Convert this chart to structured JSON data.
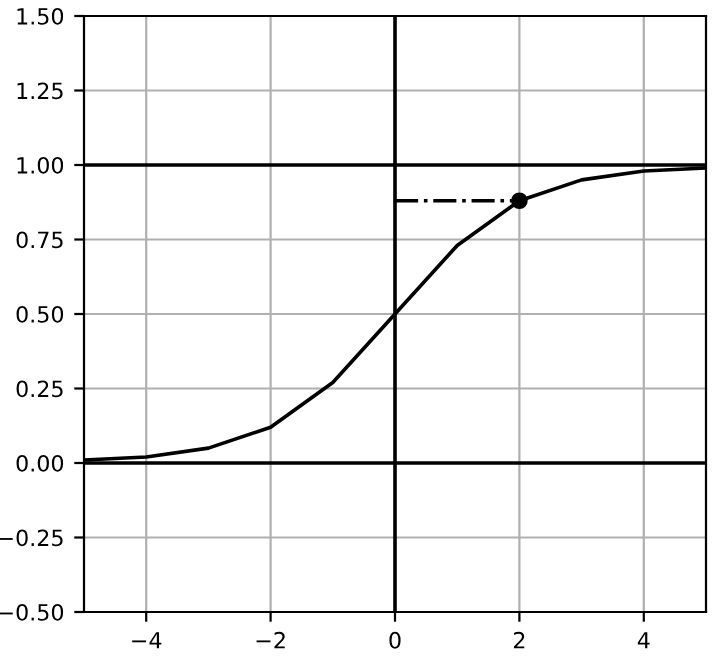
{
  "chart_data": {
    "type": "line",
    "series": [
      {
        "color": "#000000",
        "x": [
          -5,
          -4,
          -3,
          -2,
          -1,
          0,
          1,
          2,
          3,
          4,
          5
        ],
        "values": [
          0.01,
          0.02,
          0.05,
          0.12,
          0.27,
          0.5,
          0.73,
          0.88,
          0.95,
          0.98,
          0.99
        ],
        "line_style": "solid",
        "marker": "none"
      },
      {
        "type": "line",
        "color": "#000000",
        "x": [
          0,
          2
        ],
        "values": [
          0.88,
          0.88
        ],
        "line_style": "dashdot",
        "marker": "none"
      },
      {
        "type": "scatter",
        "color": "#000000",
        "x": [
          2
        ],
        "values": [
          0.88
        ],
        "marker": "circle"
      }
    ],
    "ref_lines": [
      {
        "axis": "y",
        "value": 1,
        "color": "#000000"
      },
      {
        "axis": "y",
        "value": 0,
        "color": "#000000"
      },
      {
        "axis": "x",
        "value": 0,
        "color": "#000000"
      }
    ],
    "xlim": [
      -5,
      5
    ],
    "xticks": [
      {
        "value": -4,
        "label": "−4"
      },
      {
        "value": -2,
        "label": "−2"
      },
      0,
      2,
      4
    ],
    "ylim": [
      -0.5,
      1.5
    ],
    "yticks": [
      {
        "value": -0.5,
        "label": "−0.50"
      },
      {
        "value": -0.25,
        "label": "−0.25"
      },
      {
        "value": 0,
        "label": "0.00"
      },
      {
        "value": 0.25,
        "label": "0.25"
      },
      {
        "value": 0.5,
        "label": "0.50"
      },
      {
        "value": 0.75,
        "label": "0.75"
      },
      {
        "value": 1,
        "label": "1.00"
      },
      {
        "value": 1.25,
        "label": "1.25"
      },
      {
        "value": 1.5,
        "label": "1.50"
      }
    ],
    "grid": true
  }
}
